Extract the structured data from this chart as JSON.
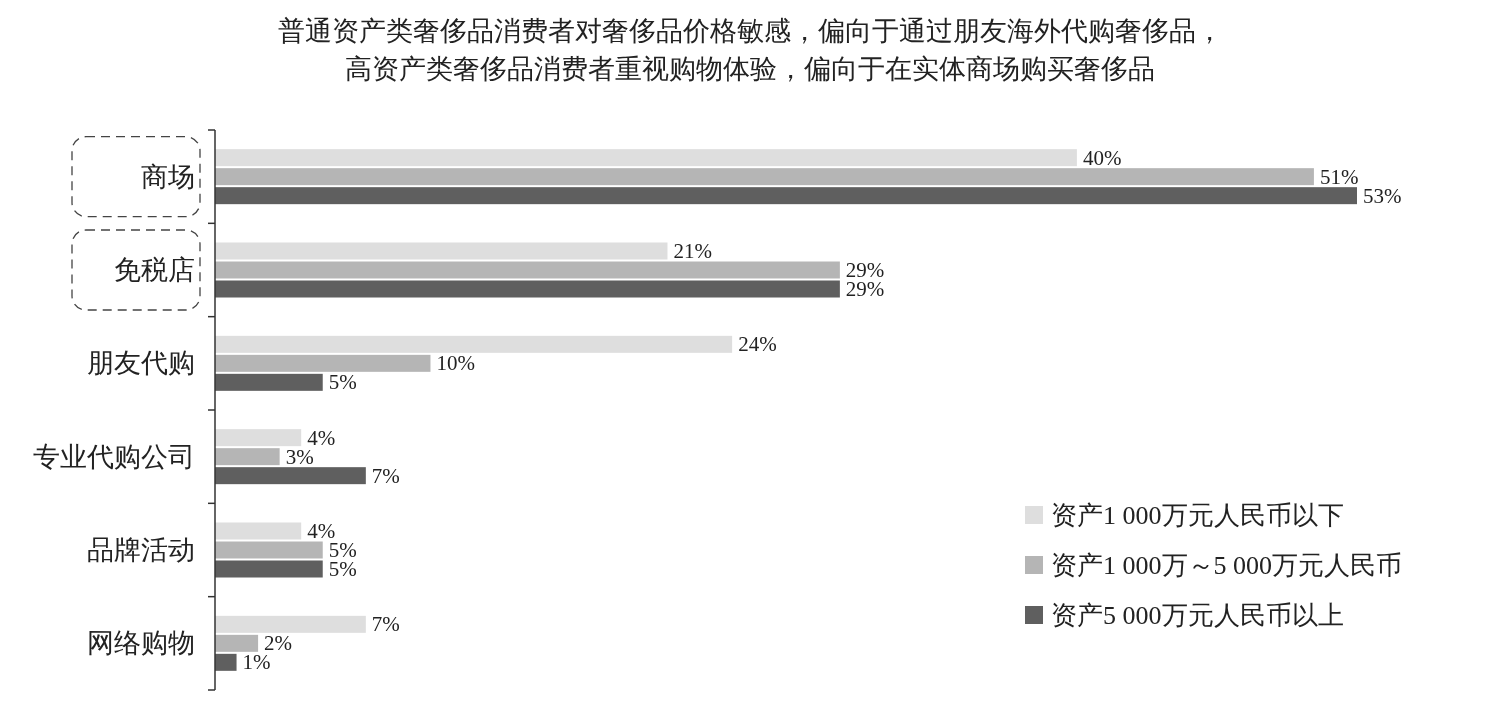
{
  "chart_data": {
    "type": "bar",
    "orientation": "horizontal",
    "title": "普通资产类奢侈品消费者对奢侈品价格敏感，偏向于通过朋友海外代购奢侈品，",
    "subtitle": "高资产类奢侈品消费者重视购物体验，偏向于在实体商场购买奢侈品",
    "categories": [
      "商场",
      "免税店",
      "朋友代购",
      "专业代购公司",
      "品牌活动",
      "网络购物"
    ],
    "series": [
      {
        "name": "资产1 000万元人民币以下",
        "color": "#dedede",
        "values": [
          40,
          21,
          24,
          4,
          4,
          7
        ],
        "value_labels": [
          "40%",
          "21%",
          "24%",
          "4%",
          "4%",
          "7%"
        ]
      },
      {
        "name": "资产1 000万～5 000万元人民币",
        "color": "#b5b5b5",
        "values": [
          51,
          29,
          10,
          3,
          5,
          2
        ],
        "value_labels": [
          "51%",
          "29%",
          "10%",
          "3%",
          "5%",
          "2%"
        ]
      },
      {
        "name": "资产5 000万元人民币以上",
        "color": "#5f5f5f",
        "values": [
          53,
          29,
          5,
          7,
          5,
          1
        ],
        "value_labels": [
          "53%",
          "29%",
          "5%",
          "7%",
          "5%",
          "1%"
        ]
      }
    ],
    "legend": "bottom right"
  }
}
